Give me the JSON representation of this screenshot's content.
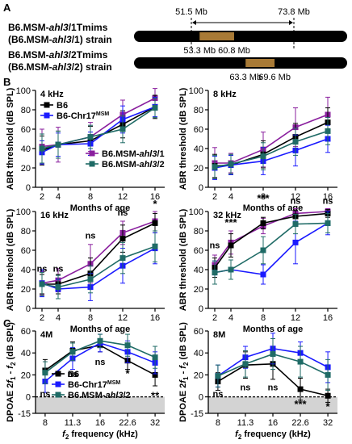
{
  "colors": {
    "B6": "#000000",
    "Chr17": "#1a1aff",
    "ahl3_1": "#8a1f9e",
    "ahl3_2": "#1f6b66",
    "segment": "#a87a36",
    "chrom": "#000000",
    "below_zero": "#d3d3d3"
  },
  "panelA": {
    "label": "A",
    "strains": [
      {
        "line1": "B6.MSM-ahl3/1Tmims",
        "line2": "(B6.MSM-ahl3/1) strain",
        "seg": [
          53.3,
          60.8
        ],
        "dashes": [
          51.5,
          73.8
        ],
        "top_labels": [
          "51.5 Mb",
          "73.8 Mb"
        ],
        "bottom_labels": [
          "53.3 Mb",
          "60.8 Mb"
        ]
      },
      {
        "line1": "B6.MSM-ahl3/2Tmims",
        "line2": "(B6.MSM-ahl3/2) strain",
        "seg": [
          63.3,
          69.6
        ],
        "dashes": [],
        "top_labels": [],
        "bottom_labels": [
          "63.3 Mb",
          "69.6 Mb"
        ]
      }
    ]
  },
  "labelB": "B",
  "labelC": "C",
  "chart_data": [
    {
      "id": "b4",
      "type": "line",
      "title": "4 kHz",
      "xlabel": "Months of age",
      "ylabel": "ABR threshold (dB SPL)",
      "x": [
        2,
        4,
        8,
        12,
        16
      ],
      "xlim": [
        1.2,
        17.2
      ],
      "ylim": [
        0,
        100
      ],
      "yticks": [
        0,
        20,
        40,
        60,
        80,
        100
      ],
      "legend_top": [
        {
          "name": "B6",
          "key": "B6"
        },
        {
          "name": "B6-Chr17MSM",
          "key": "Chr17"
        }
      ],
      "legend_bottom": [
        {
          "name": "B6.MSM-ahl3/1",
          "key": "ahl3_1"
        },
        {
          "name": "B6.MSM-ahl3/2",
          "key": "ahl3_2"
        }
      ],
      "series": [
        {
          "key": "ahl3_1",
          "values": [
            42,
            44,
            52,
            75,
            92
          ],
          "err": [
            18,
            18,
            15,
            15,
            10
          ]
        },
        {
          "key": "B6",
          "values": [
            38,
            44,
            48,
            65,
            83
          ],
          "err": [
            15,
            14,
            15,
            14,
            12
          ]
        },
        {
          "key": "Chr17",
          "values": [
            36,
            44,
            45,
            70,
            83
          ],
          "err": [
            12,
            12,
            12,
            14,
            10
          ]
        },
        {
          "key": "ahl3_2",
          "values": [
            40,
            44,
            52,
            60,
            82
          ],
          "err": [
            15,
            14,
            12,
            14,
            10
          ]
        }
      ],
      "sig": []
    },
    {
      "id": "b8",
      "type": "line",
      "title": "8 kHz",
      "xlabel": "Months of age",
      "ylabel": "ABR threshold (dB SPL)",
      "x": [
        2,
        4,
        8,
        12,
        16
      ],
      "xlim": [
        1.2,
        17.2
      ],
      "ylim": [
        0,
        100
      ],
      "yticks": [
        0,
        20,
        40,
        60,
        80,
        100
      ],
      "series": [
        {
          "key": "ahl3_1",
          "values": [
            25,
            25,
            39,
            62,
            75
          ],
          "err": [
            16,
            10,
            18,
            20,
            18
          ]
        },
        {
          "key": "B6",
          "values": [
            22,
            23,
            34,
            52,
            67
          ],
          "err": [
            12,
            10,
            14,
            14,
            15
          ]
        },
        {
          "key": "Chr17",
          "values": [
            20,
            23,
            27,
            38,
            50
          ],
          "err": [
            12,
            10,
            14,
            16,
            14
          ]
        },
        {
          "key": "ahl3_2",
          "values": [
            21,
            24,
            32,
            47,
            58
          ],
          "err": [
            12,
            10,
            14,
            14,
            14
          ]
        }
      ],
      "sig": []
    },
    {
      "id": "b16",
      "type": "line",
      "title": "16 kHz",
      "xlabel": "Months of age",
      "ylabel": "ABR threshold (dB SPL)",
      "x": [
        2,
        4,
        8,
        12,
        16
      ],
      "xlim": [
        1.2,
        17.2
      ],
      "ylim": [
        0,
        100
      ],
      "yticks": [
        0,
        20,
        40,
        60,
        80,
        100
      ],
      "series": [
        {
          "key": "ahl3_1",
          "values": [
            26,
            29,
            46,
            78,
            90
          ],
          "err": [
            12,
            12,
            20,
            12,
            10
          ]
        },
        {
          "key": "B6",
          "values": [
            25,
            25,
            36,
            72,
            88
          ],
          "err": [
            10,
            10,
            16,
            14,
            10
          ]
        },
        {
          "key": "Chr17",
          "values": [
            26,
            20,
            22,
            44,
            62
          ],
          "err": [
            14,
            10,
            14,
            18,
            16
          ]
        },
        {
          "key": "ahl3_2",
          "values": [
            25,
            22,
            30,
            52,
            64
          ],
          "err": [
            12,
            12,
            14,
            16,
            16
          ]
        }
      ],
      "sig": [
        {
          "x": 2,
          "y": 38,
          "t": "ns"
        },
        {
          "x": 4,
          "y": 38,
          "t": "ns"
        },
        {
          "x": 8,
          "y": 72,
          "t": "ns"
        },
        {
          "x": 12,
          "y": 96,
          "t": "ns"
        },
        {
          "x": 16,
          "y": 104,
          "t": "*"
        }
      ]
    },
    {
      "id": "b32",
      "type": "line",
      "title": "32 kHz",
      "xlabel": "Months of age",
      "ylabel": "ABR threshold (dB SPL)",
      "x": [
        2,
        4,
        8,
        12,
        16
      ],
      "xlim": [
        1.2,
        17.2
      ],
      "ylim": [
        0,
        100
      ],
      "yticks": [
        0,
        20,
        40,
        60,
        80,
        100
      ],
      "series": [
        {
          "key": "ahl3_1",
          "values": [
            45,
            68,
            85,
            98,
            100
          ],
          "err": [
            10,
            12,
            8,
            5,
            3
          ]
        },
        {
          "key": "B6",
          "values": [
            42,
            65,
            88,
            95,
            98
          ],
          "err": [
            10,
            12,
            6,
            6,
            4
          ]
        },
        {
          "key": "Chr17",
          "values": [
            37,
            40,
            35,
            68,
            88
          ],
          "err": [
            12,
            10,
            10,
            22,
            12
          ]
        },
        {
          "key": "ahl3_2",
          "values": [
            37,
            40,
            60,
            87,
            88
          ],
          "err": [
            12,
            10,
            14,
            10,
            10
          ]
        }
      ],
      "sig": [
        {
          "x": 2,
          "y": 62,
          "t": "ns"
        },
        {
          "x": 4,
          "y": 85,
          "t": "***"
        },
        {
          "x": 8,
          "y": 110,
          "t": "***"
        },
        {
          "x": 12,
          "y": 108,
          "t": "ns"
        },
        {
          "x": 16,
          "y": 108,
          "t": "ns"
        }
      ]
    },
    {
      "id": "c4",
      "type": "line",
      "title": "4M",
      "xlabel": "f2 frequency (kHz)",
      "ylabel": "DPOAE 2f1 - f2 (dB SPL)",
      "x": [
        8,
        11.3,
        16,
        22.6,
        32
      ],
      "xlabels": [
        "8",
        "11.3",
        "16",
        "22.6",
        "32"
      ],
      "xlim": [
        -0.35,
        4.35
      ],
      "ylim": [
        -15,
        60
      ],
      "yticks": [
        -15,
        0,
        20,
        40,
        60
      ],
      "legend": [
        {
          "name": "B6",
          "key": "B6"
        },
        {
          "name": "B6-Chr17MSM",
          "key": "Chr17"
        },
        {
          "name": "B6.MSM-ahl3/2",
          "key": "ahl3_2"
        }
      ],
      "series": [
        {
          "key": "B6",
          "values": [
            24,
            42,
            47,
            33,
            20
          ],
          "err": [
            10,
            8,
            6,
            8,
            10
          ]
        },
        {
          "key": "Chr17",
          "values": [
            14,
            35,
            49,
            41,
            31
          ],
          "err": [
            10,
            10,
            8,
            10,
            10
          ]
        },
        {
          "key": "ahl3_2",
          "values": [
            22,
            41,
            51,
            47,
            36
          ],
          "err": [
            10,
            8,
            6,
            10,
            10
          ]
        }
      ],
      "sig": [
        {
          "x": 0,
          "y": 0,
          "t": "ns"
        },
        {
          "x": 1,
          "y": 18,
          "t": "ns"
        },
        {
          "x": 2,
          "y": 29,
          "t": "ns"
        },
        {
          "x": 3,
          "y": 18,
          "t": "*"
        },
        {
          "x": 4,
          "y": -2,
          "t": "**"
        }
      ]
    },
    {
      "id": "c8",
      "type": "line",
      "title": "8M",
      "xlabel": "f2 frequency (kHz)",
      "ylabel": "DPOAE 2f1 - f2 (dB SPL)",
      "x": [
        8,
        11.3,
        16,
        22.6,
        32
      ],
      "xlabels": [
        "8",
        "11.3",
        "16",
        "22.6",
        "32"
      ],
      "xlim": [
        -0.35,
        4.35
      ],
      "ylim": [
        -15,
        60
      ],
      "yticks": [
        -15,
        0,
        20,
        40,
        60
      ],
      "series": [
        {
          "key": "B6",
          "values": [
            14,
            29,
            30,
            7,
            1
          ],
          "err": [
            8,
            12,
            14,
            10,
            6
          ]
        },
        {
          "key": "Chr17",
          "values": [
            19,
            36,
            44,
            40,
            27
          ],
          "err": [
            10,
            10,
            14,
            10,
            14
          ]
        },
        {
          "key": "ahl3_2",
          "values": [
            19,
            30,
            39,
            32,
            20
          ],
          "err": [
            10,
            12,
            14,
            14,
            14
          ]
        }
      ],
      "sig": [
        {
          "x": 0,
          "y": 0,
          "t": "ns"
        },
        {
          "x": 1,
          "y": 6,
          "t": "ns"
        },
        {
          "x": 2,
          "y": 6,
          "t": "ns"
        },
        {
          "x": 3,
          "y": -10,
          "t": "***"
        },
        {
          "x": 4,
          "y": -12,
          "t": "*"
        }
      ]
    }
  ]
}
